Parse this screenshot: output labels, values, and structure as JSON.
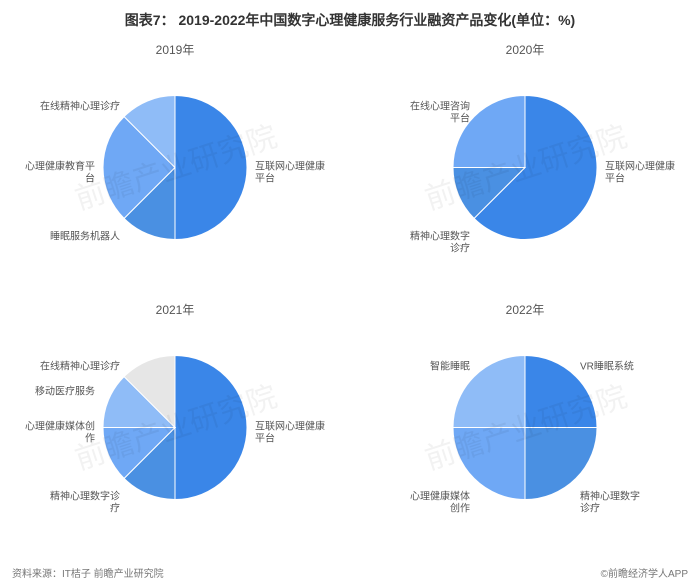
{
  "title": "图表7： 2019-2022年中国数字心理健康服务行业融资产品变化(单位：%)",
  "source_label": "资料来源：IT桔子 前瞻产业研究院",
  "app_label": "©前瞻经济学人APP",
  "watermark": "前瞻产业研究院",
  "chart_radius": 72,
  "label_fontsize": 10,
  "title_fontsize": 14,
  "subtitle_fontsize": 12,
  "background_color": "#ffffff",
  "title_color": "#333333",
  "label_color": "#555555",
  "panels": [
    {
      "subtitle": "2019年",
      "slices": [
        {
          "label": "互联网心理健康\n平台",
          "value": 50,
          "color": "#3a86e8",
          "label_pos": "right"
        },
        {
          "label": "睡眠服务机器人",
          "value": 12.5,
          "color": "#4a90e2",
          "label_pos": "bottom-left"
        },
        {
          "label": "心理健康教育平\n台",
          "value": 25,
          "color": "#6fa8f5",
          "label_pos": "left"
        },
        {
          "label": "在线精神心理诊疗",
          "value": 12.5,
          "color": "#8fbcf7",
          "label_pos": "top-left"
        }
      ]
    },
    {
      "subtitle": "2020年",
      "slices": [
        {
          "label": "互联网心理健康\n平台",
          "value": 62.5,
          "color": "#3a86e8",
          "label_pos": "right"
        },
        {
          "label": "精神心理数字\n诊疗",
          "value": 12.5,
          "color": "#4a90e2",
          "label_pos": "bottom-left"
        },
        {
          "label": "在线心理咨询\n平台",
          "value": 25,
          "color": "#6fa8f5",
          "label_pos": "top-left"
        }
      ]
    },
    {
      "subtitle": "2021年",
      "slices": [
        {
          "label": "互联网心理健康\n平台",
          "value": 50,
          "color": "#3a86e8",
          "label_pos": "right"
        },
        {
          "label": "精神心理数字诊\n疗",
          "value": 12.5,
          "color": "#4a90e2",
          "label_pos": "bottom-left"
        },
        {
          "label": "心理健康媒体创\n作",
          "value": 12.5,
          "color": "#6fa8f5",
          "label_pos": "left"
        },
        {
          "label": "移动医疗服务",
          "value": 12.5,
          "color": "#8fbcf7",
          "label_pos": "upper-left"
        },
        {
          "label": "在线精神心理诊疗",
          "value": 12.5,
          "color": "#e6e6e6",
          "label_pos": "top-left"
        }
      ]
    },
    {
      "subtitle": "2022年",
      "slices": [
        {
          "label": "VR睡眠系统",
          "value": 25,
          "color": "#3a86e8",
          "label_pos": "top-right"
        },
        {
          "label": "精神心理数字\n诊疗",
          "value": 25,
          "color": "#4a90e2",
          "label_pos": "bottom-right"
        },
        {
          "label": "心理健康媒体\n创作",
          "value": 25,
          "color": "#6fa8f5",
          "label_pos": "bottom-left"
        },
        {
          "label": "智能睡眠",
          "value": 25,
          "color": "#8fbcf7",
          "label_pos": "top-left"
        }
      ]
    }
  ]
}
